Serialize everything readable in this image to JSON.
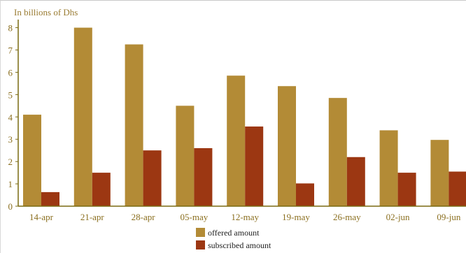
{
  "chart_data": {
    "type": "bar",
    "unit_label": "In billions of Dhs",
    "categories": [
      "14-apr",
      "21-apr",
      "28-apr",
      "05-may",
      "12-may",
      "19-may",
      "26-may",
      "02-jun",
      "09-jun"
    ],
    "series": [
      {
        "name": "offered amount",
        "color": "#b38b36",
        "values": [
          4.1,
          8.0,
          7.25,
          4.5,
          5.85,
          5.38,
          4.85,
          3.4,
          2.97
        ]
      },
      {
        "name": "subscribed amount",
        "color": "#9c3712",
        "values": [
          0.63,
          1.5,
          2.5,
          2.6,
          3.57,
          1.02,
          2.2,
          1.5,
          1.55
        ]
      }
    ],
    "ylim": [
      0,
      8.3
    ],
    "yticks": [
      0,
      1,
      2,
      3,
      4,
      5,
      6,
      7,
      8
    ],
    "grid": false,
    "legend_position": "bottom-center",
    "axis_color": "#7a6a10"
  }
}
